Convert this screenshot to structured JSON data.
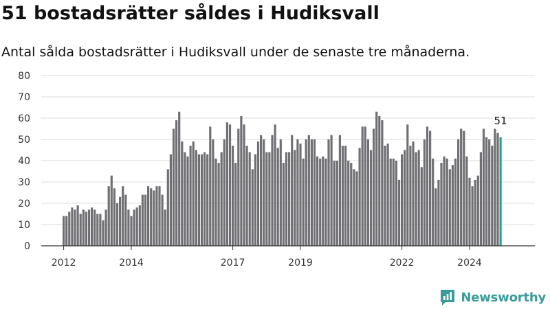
{
  "header": {
    "title": "51 bostadsrätter såldes i Hudiksvall",
    "subtitle": "Antal sålda bostadsrätter i Hudiksvall under de senaste tre månaderna."
  },
  "brand": {
    "name": "Newsworthy",
    "color": "#3a9c9a",
    "icon": "newsworthy-logo-icon"
  },
  "chart_data": {
    "type": "bar",
    "title": "51 bostadsrätter såldes i Hudiksvall",
    "subtitle": "Antal sålda bostadsrätter i Hudiksvall under de senaste tre månaderna.",
    "xlabel": "",
    "ylabel": "",
    "ylim": [
      0,
      80
    ],
    "yticks": [
      0,
      10,
      20,
      30,
      40,
      50,
      60,
      70,
      80
    ],
    "xtick_labels": [
      "2012",
      "2014",
      "2017",
      "2019",
      "2022",
      "2024"
    ],
    "grid": true,
    "bar_color": "#707074",
    "highlight_color": "#27a09a",
    "highlight_label": "51",
    "start": "2012-01",
    "frequency": "monthly",
    "values": [
      14,
      14,
      16,
      18,
      17,
      19,
      15,
      17,
      16,
      17,
      18,
      17,
      15,
      15,
      12,
      17,
      28,
      33,
      27,
      20,
      23,
      28,
      24,
      17,
      14,
      17,
      18,
      19,
      24,
      24,
      28,
      27,
      26,
      28,
      28,
      24,
      17,
      36,
      43,
      55,
      59,
      63,
      49,
      44,
      42,
      47,
      49,
      45,
      43,
      43,
      44,
      43,
      56,
      50,
      41,
      39,
      44,
      50,
      58,
      57,
      47,
      39,
      55,
      61,
      57,
      47,
      44,
      36,
      43,
      49,
      52,
      50,
      44,
      44,
      52,
      57,
      46,
      50,
      39,
      44,
      44,
      52,
      45,
      50,
      48,
      41,
      50,
      52,
      50,
      50,
      42,
      41,
      42,
      41,
      50,
      52,
      40,
      40,
      52,
      47,
      47,
      40,
      39,
      36,
      35,
      46,
      56,
      56,
      50,
      45,
      55,
      63,
      61,
      59,
      47,
      48,
      41,
      41,
      40,
      31,
      43,
      45,
      57,
      47,
      49,
      44,
      45,
      37,
      50,
      56,
      54,
      41,
      27,
      31,
      39,
      42,
      41,
      36,
      38,
      41,
      50,
      55,
      54,
      42,
      32,
      28,
      31,
      33,
      44,
      55,
      51,
      50,
      47,
      55,
      53,
      51
    ]
  }
}
